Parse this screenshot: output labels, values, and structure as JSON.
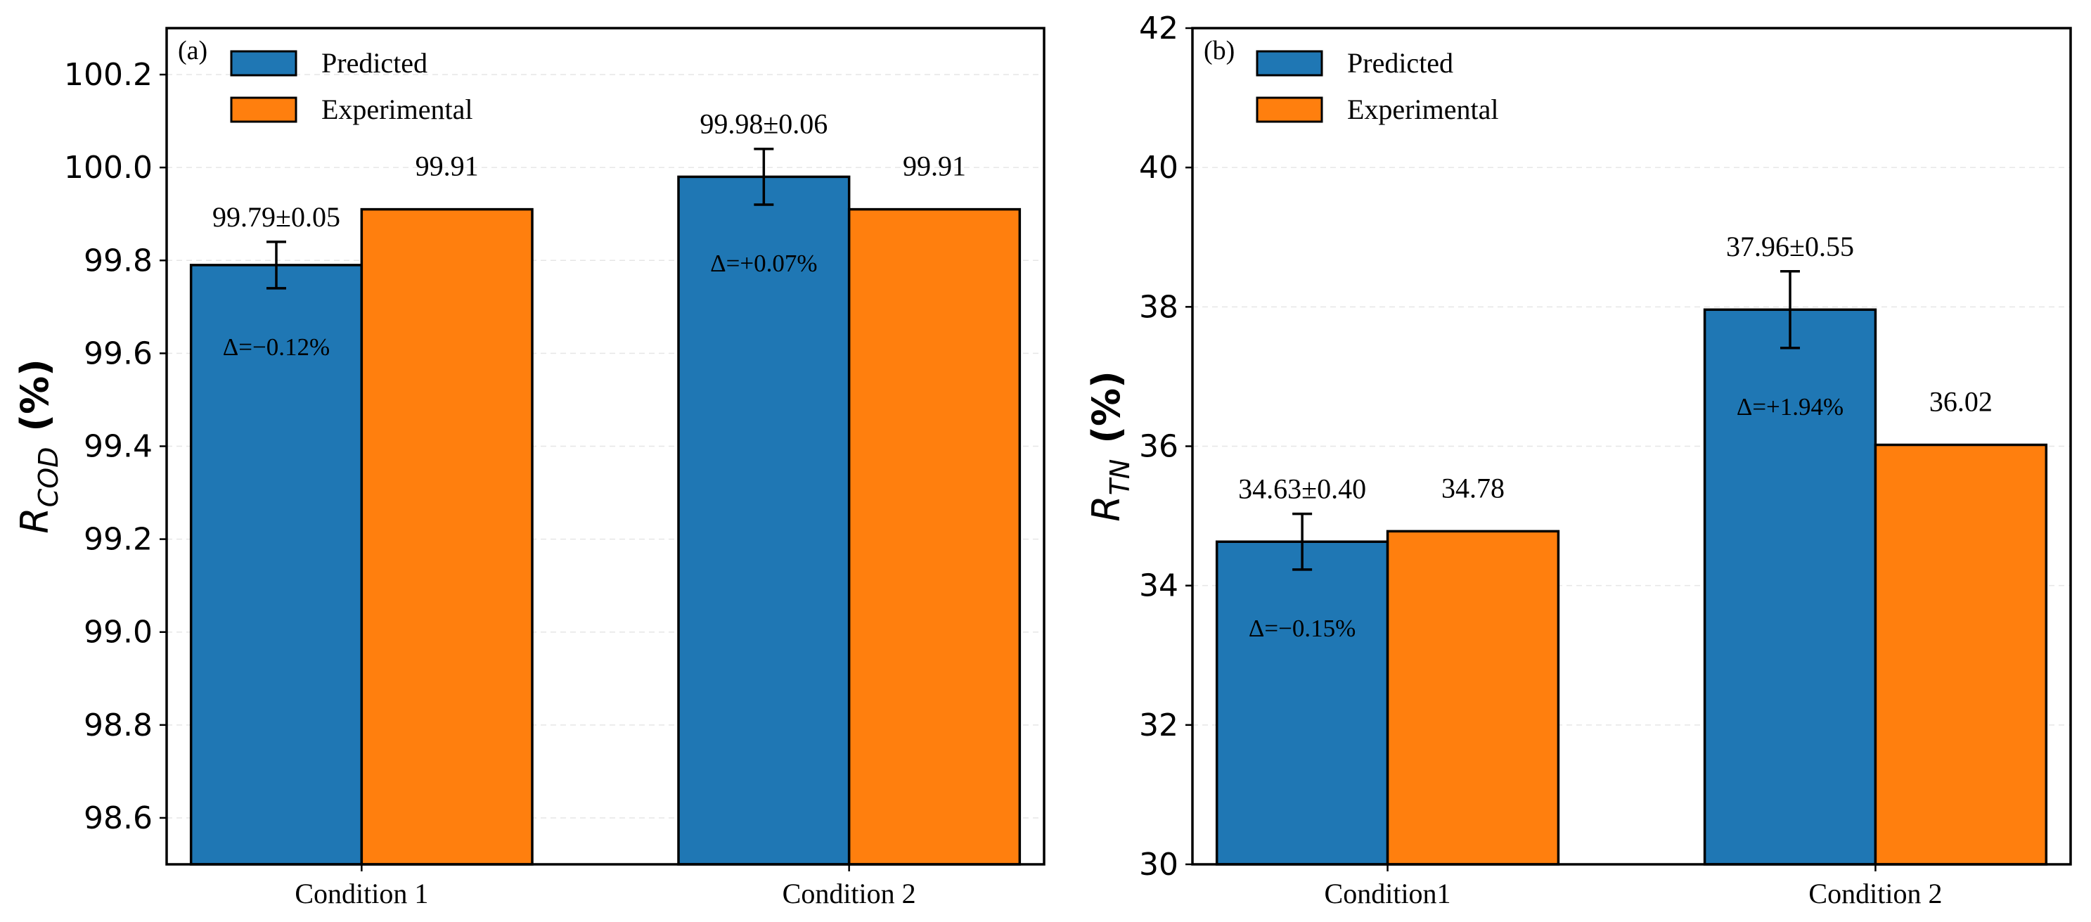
{
  "colors": {
    "predicted": "#1f77b4",
    "experimental": "#ff7f0e",
    "edge": "#000000",
    "grid": "#e6e6e6"
  },
  "chart_data": [
    {
      "type": "bar",
      "panel_label": "(a)",
      "categories": [
        "Condition 1",
        "Condition 2"
      ],
      "ylabel_main": "R",
      "ylabel_sub": "COD",
      "ylabel_unit": "(%)",
      "ylim": [
        98.5,
        100.3
      ],
      "yticks": [
        98.6,
        98.8,
        99.0,
        99.2,
        99.4,
        99.6,
        99.8,
        100.0,
        100.2
      ],
      "ytick_labels": [
        "98.6",
        "98.8",
        "99.0",
        "99.2",
        "99.4",
        "99.6",
        "99.8",
        "100.0",
        "100.2"
      ],
      "grid": true,
      "legend": "top-left",
      "series": [
        {
          "name": "Predicted",
          "values": [
            99.79,
            99.98
          ],
          "errors": [
            0.05,
            0.06
          ],
          "labels": [
            "99.79±0.05",
            "99.98±0.06"
          ]
        },
        {
          "name": "Experimental",
          "values": [
            99.91,
            99.91
          ],
          "labels": [
            "99.91",
            "99.91"
          ]
        }
      ],
      "deltas": [
        "Δ=−0.12%",
        "Δ=+0.07%"
      ]
    },
    {
      "type": "bar",
      "panel_label": "(b)",
      "categories": [
        "Condition1",
        "Condition 2"
      ],
      "ylabel_main": "R",
      "ylabel_sub": "TN",
      "ylabel_unit": "(%)",
      "ylim": [
        30,
        42
      ],
      "yticks": [
        30,
        32,
        34,
        36,
        38,
        40,
        42
      ],
      "ytick_labels": [
        "30",
        "32",
        "34",
        "36",
        "38",
        "40",
        "42"
      ],
      "grid": true,
      "legend": "top-left",
      "series": [
        {
          "name": "Predicted",
          "values": [
            34.63,
            37.96
          ],
          "errors": [
            0.4,
            0.55
          ],
          "labels": [
            "34.63±0.40",
            "37.96±0.55"
          ]
        },
        {
          "name": "Experimental",
          "values": [
            34.78,
            36.02
          ],
          "labels": [
            "34.78",
            "36.02"
          ]
        }
      ],
      "deltas": [
        "Δ=−0.15%",
        "Δ=+1.94%"
      ]
    }
  ]
}
